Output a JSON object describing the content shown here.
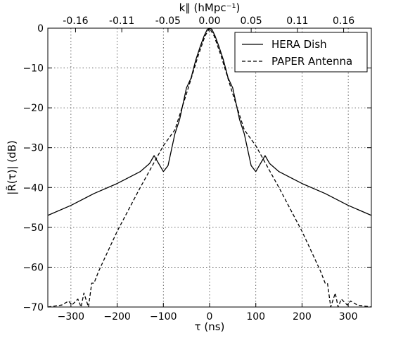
{
  "chart_data": {
    "type": "line",
    "xlabel": "τ (ns)",
    "ylabel": "|R̃(τ)| (dB)",
    "top_xlabel": "k∥ (hMpc⁻¹)",
    "xlim": [
      -350,
      350
    ],
    "ylim": [
      -70,
      0
    ],
    "x_ticks": [
      -300,
      -200,
      -100,
      0,
      100,
      200,
      300
    ],
    "x_tick_labels": [
      "−300",
      "−200",
      "−100",
      "0",
      "100",
      "200",
      "300"
    ],
    "y_ticks": [
      0,
      -10,
      -20,
      -30,
      -40,
      -50,
      -60,
      -70
    ],
    "y_tick_labels": [
      "0",
      "−10",
      "−20",
      "−30",
      "−40",
      "−50",
      "−60",
      "−70"
    ],
    "top_ticks": [
      -0.16,
      -0.11,
      -0.05,
      0.0,
      0.05,
      0.11,
      0.16
    ],
    "top_tick_labels": [
      "-0.16",
      "-0.11",
      "-0.05",
      "0.00",
      "0.05",
      "0.11",
      "0.16"
    ],
    "top_tick_tau": [
      -290,
      -190,
      -90,
      0,
      90,
      190,
      290
    ],
    "grid": true,
    "legend_position": "top-right",
    "series": [
      {
        "name": "HERA Dish",
        "style": "solid",
        "x": [
          -350,
          -300,
          -250,
          -200,
          -150,
          -130,
          -120,
          -100,
          -90,
          -75,
          -65,
          -50,
          -40,
          -30,
          -20,
          -12,
          -5,
          0,
          5,
          12,
          20,
          30,
          40,
          50,
          65,
          75,
          90,
          100,
          120,
          130,
          150,
          200,
          250,
          300,
          350
        ],
        "y": [
          -47,
          -44.5,
          -41.5,
          -39,
          -36,
          -34,
          -32,
          -36,
          -34.5,
          -26.5,
          -23,
          -15,
          -12.5,
          -8,
          -4.5,
          -2,
          -0.3,
          0,
          -0.3,
          -2,
          -4.5,
          -8,
          -12.5,
          -15,
          -23,
          -26.5,
          -34.5,
          -36,
          -32,
          -34,
          -36,
          -39,
          -41.5,
          -44.5,
          -47
        ]
      },
      {
        "name": "PAPER Antenna",
        "style": "dashed",
        "x": [
          -350,
          -320,
          -305,
          -298,
          -285,
          -278,
          -272,
          -262,
          -255,
          -250,
          -240,
          -220,
          -200,
          -150,
          -100,
          -75,
          -50,
          -25,
          -10,
          0,
          10,
          25,
          50,
          75,
          100,
          150,
          200,
          220,
          240,
          250,
          255,
          262,
          272,
          278,
          285,
          298,
          305,
          320,
          350
        ],
        "y": [
          -70,
          -69.5,
          -68.5,
          -69.5,
          -68,
          -70,
          -66.5,
          -70,
          -64,
          -64,
          -61,
          -56,
          -51,
          -40,
          -29.5,
          -25.5,
          -16.5,
          -7,
          -2,
          0,
          -2,
          -7,
          -16.5,
          -25.5,
          -29.5,
          -40,
          -51,
          -56,
          -61,
          -64,
          -64,
          -70,
          -66.5,
          -70,
          -68,
          -69.5,
          -68.5,
          -69.5,
          -70
        ]
      }
    ]
  }
}
